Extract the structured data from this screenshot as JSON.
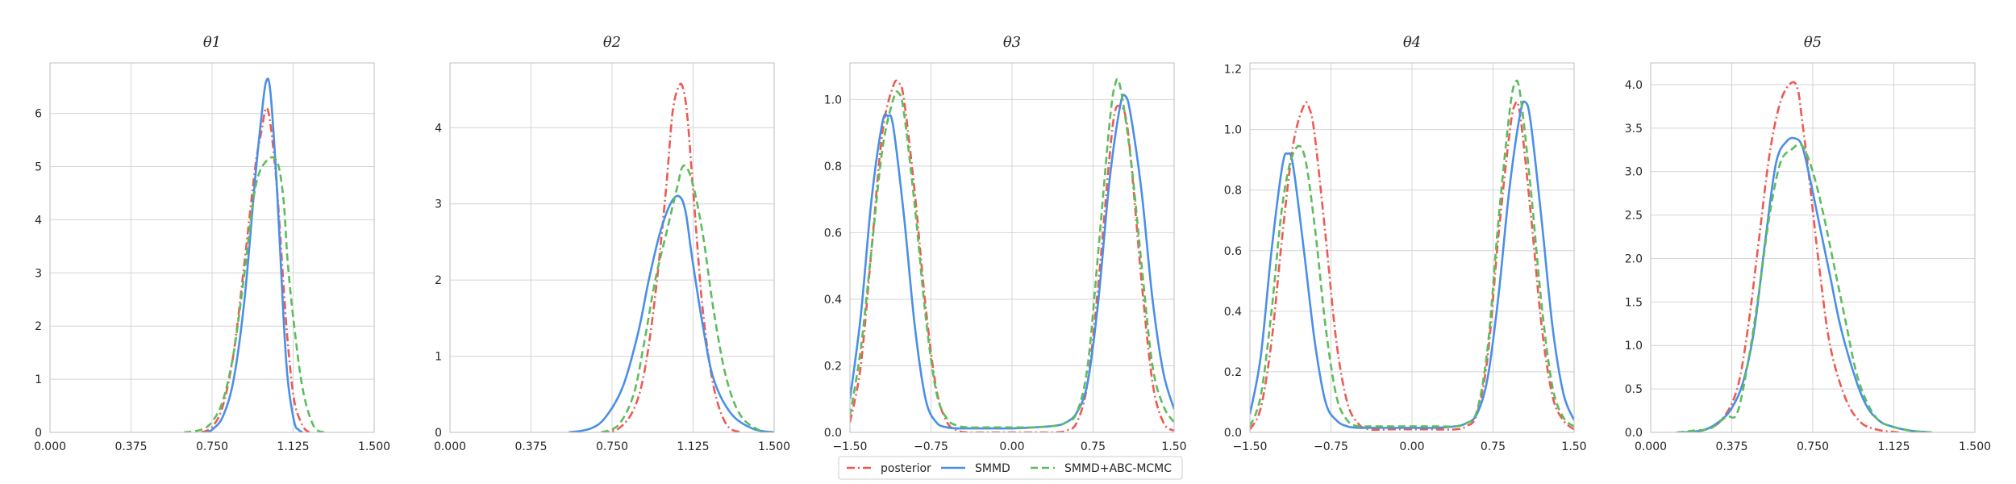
{
  "chart_data": [
    {
      "type": "line",
      "title": "θ1",
      "xlim": [
        0.0,
        1.5
      ],
      "ylim": [
        0,
        6.95
      ],
      "xticks": [
        "0.000",
        "0.375",
        "0.750",
        "1.125",
        "1.500"
      ],
      "yticks": [
        "0",
        "1",
        "2",
        "3",
        "4",
        "5",
        "6"
      ],
      "grid": true,
      "series": [
        {
          "name": "posterior",
          "x": [
            0.7,
            0.75,
            0.8,
            0.85,
            0.9,
            0.95,
            0.98,
            1.0,
            1.02,
            1.05,
            1.08,
            1.1,
            1.13,
            1.17,
            1.2
          ],
          "y": [
            0.0,
            0.1,
            0.5,
            1.5,
            3.2,
            5.0,
            5.7,
            6.1,
            5.8,
            4.6,
            2.8,
            1.7,
            0.6,
            0.12,
            0.0
          ]
        },
        {
          "name": "SMMD",
          "x": [
            0.72,
            0.75,
            0.8,
            0.85,
            0.9,
            0.95,
            0.98,
            1.0,
            1.02,
            1.05,
            1.08,
            1.1,
            1.13,
            1.15,
            1.17
          ],
          "y": [
            0.0,
            0.05,
            0.3,
            1.0,
            2.5,
            4.8,
            6.0,
            6.6,
            6.4,
            4.6,
            2.2,
            1.0,
            0.2,
            0.05,
            0.0
          ]
        },
        {
          "name": "SMMD+ABC-MCMC",
          "x": [
            0.62,
            0.7,
            0.75,
            0.8,
            0.85,
            0.9,
            0.95,
            1.0,
            1.05,
            1.08,
            1.1,
            1.13,
            1.17,
            1.22,
            1.27
          ],
          "y": [
            0.0,
            0.05,
            0.2,
            0.6,
            1.5,
            3.0,
            4.6,
            5.1,
            5.1,
            4.4,
            3.2,
            2.0,
            0.8,
            0.12,
            0.0
          ]
        }
      ]
    },
    {
      "type": "line",
      "title": "θ2",
      "xlim": [
        0.0,
        1.5
      ],
      "ylim": [
        0,
        4.85
      ],
      "xticks": [
        "0.000",
        "0.375",
        "0.750",
        "1.125",
        "1.500"
      ],
      "yticks": [
        "0",
        "1",
        "2",
        "3",
        "4"
      ],
      "grid": true,
      "series": [
        {
          "name": "posterior",
          "x": [
            0.7,
            0.78,
            0.85,
            0.9,
            0.95,
            1.0,
            1.03,
            1.06,
            1.08,
            1.1,
            1.13,
            1.17,
            1.22,
            1.28,
            1.35
          ],
          "y": [
            0.0,
            0.05,
            0.3,
            0.8,
            1.8,
            3.2,
            4.2,
            4.55,
            4.5,
            4.1,
            3.0,
            1.6,
            0.6,
            0.1,
            0.0
          ]
        },
        {
          "name": "SMMD",
          "x": [
            0.55,
            0.65,
            0.72,
            0.8,
            0.87,
            0.92,
            0.97,
            1.02,
            1.06,
            1.09,
            1.12,
            1.17,
            1.22,
            1.3,
            1.4,
            1.5
          ],
          "y": [
            0.0,
            0.05,
            0.2,
            0.6,
            1.3,
            2.0,
            2.6,
            3.0,
            3.1,
            2.9,
            2.3,
            1.4,
            0.7,
            0.25,
            0.05,
            0.0
          ]
        },
        {
          "name": "SMMD+ABC-MCMC",
          "x": [
            0.7,
            0.78,
            0.85,
            0.9,
            0.95,
            1.0,
            1.05,
            1.08,
            1.12,
            1.17,
            1.22,
            1.28,
            1.35,
            1.45
          ],
          "y": [
            0.0,
            0.1,
            0.5,
            1.2,
            2.0,
            2.6,
            3.2,
            3.5,
            3.3,
            2.6,
            1.6,
            0.7,
            0.2,
            0.0
          ]
        }
      ]
    },
    {
      "type": "line",
      "title": "θ3",
      "xlim": [
        -1.5,
        1.5
      ],
      "ylim": [
        0,
        1.11
      ],
      "xticks": [
        "−1.50",
        "−0.75",
        "0.00",
        "0.75",
        "1.50"
      ],
      "yticks": [
        "0.0",
        "0.2",
        "0.4",
        "0.6",
        "0.8",
        "1.0"
      ],
      "grid": true,
      "series": [
        {
          "name": "posterior",
          "x": [
            -1.5,
            -1.4,
            -1.3,
            -1.2,
            -1.1,
            -1.05,
            -1.0,
            -0.9,
            -0.8,
            -0.7,
            -0.6,
            -0.5,
            -0.4,
            -0.2,
            0.0,
            0.2,
            0.4,
            0.5,
            0.6,
            0.7,
            0.8,
            0.9,
            0.95,
            1.0,
            1.05,
            1.1,
            1.2,
            1.3,
            1.4,
            1.5
          ],
          "y": [
            0.03,
            0.2,
            0.55,
            0.9,
            1.04,
            1.05,
            1.0,
            0.72,
            0.38,
            0.13,
            0.03,
            0.005,
            0.0,
            0.0,
            0.0,
            0.0,
            0.0,
            0.005,
            0.03,
            0.15,
            0.45,
            0.82,
            0.96,
            0.98,
            0.95,
            0.82,
            0.45,
            0.15,
            0.03,
            0.005
          ]
        },
        {
          "name": "SMMD",
          "x": [
            -1.5,
            -1.4,
            -1.3,
            -1.2,
            -1.15,
            -1.1,
            -1.0,
            -0.9,
            -0.8,
            -0.7,
            -0.6,
            -0.5,
            -0.4,
            -0.2,
            0.0,
            0.2,
            0.4,
            0.5,
            0.6,
            0.7,
            0.8,
            0.9,
            1.0,
            1.05,
            1.1,
            1.2,
            1.3,
            1.4,
            1.5
          ],
          "y": [
            0.1,
            0.35,
            0.7,
            0.93,
            0.95,
            0.92,
            0.65,
            0.32,
            0.1,
            0.03,
            0.015,
            0.012,
            0.012,
            0.012,
            0.012,
            0.015,
            0.02,
            0.03,
            0.06,
            0.15,
            0.4,
            0.75,
            0.98,
            1.01,
            0.95,
            0.72,
            0.4,
            0.18,
            0.07
          ]
        },
        {
          "name": "SMMD+ABC-MCMC",
          "x": [
            -1.5,
            -1.4,
            -1.3,
            -1.2,
            -1.1,
            -1.05,
            -1.0,
            -0.9,
            -0.8,
            -0.7,
            -0.6,
            -0.5,
            -0.4,
            -0.2,
            0.0,
            0.2,
            0.4,
            0.5,
            0.6,
            0.7,
            0.8,
            0.9,
            0.95,
            1.0,
            1.1,
            1.2,
            1.3,
            1.4,
            1.5
          ],
          "y": [
            0.05,
            0.25,
            0.55,
            0.85,
            1.0,
            1.02,
            0.96,
            0.68,
            0.35,
            0.12,
            0.04,
            0.02,
            0.015,
            0.015,
            0.015,
            0.015,
            0.02,
            0.03,
            0.06,
            0.2,
            0.55,
            0.92,
            1.04,
            1.04,
            0.82,
            0.5,
            0.2,
            0.08,
            0.03
          ]
        }
      ]
    },
    {
      "type": "line",
      "title": "θ4",
      "xlim": [
        -1.5,
        1.5
      ],
      "ylim": [
        0,
        1.22
      ],
      "xticks": [
        "−1.50",
        "−0.75",
        "0.00",
        "0.75",
        "1.50"
      ],
      "yticks": [
        "0.0",
        "0.2",
        "0.4",
        "0.6",
        "0.8",
        "1.0",
        "1.2"
      ],
      "grid": true,
      "series": [
        {
          "name": "posterior",
          "x": [
            -1.5,
            -1.4,
            -1.3,
            -1.2,
            -1.1,
            -1.0,
            -0.95,
            -0.9,
            -0.8,
            -0.7,
            -0.6,
            -0.5,
            -0.4,
            -0.2,
            0.0,
            0.2,
            0.4,
            0.5,
            0.6,
            0.7,
            0.8,
            0.9,
            0.95,
            1.0,
            1.1,
            1.2,
            1.3,
            1.4,
            1.5
          ],
          "y": [
            0.01,
            0.08,
            0.3,
            0.65,
            0.95,
            1.08,
            1.07,
            0.98,
            0.65,
            0.3,
            0.1,
            0.03,
            0.01,
            0.01,
            0.01,
            0.01,
            0.01,
            0.02,
            0.06,
            0.25,
            0.65,
            0.98,
            1.08,
            1.05,
            0.72,
            0.35,
            0.12,
            0.04,
            0.01
          ]
        },
        {
          "name": "SMMD",
          "x": [
            -1.5,
            -1.4,
            -1.3,
            -1.2,
            -1.15,
            -1.1,
            -1.0,
            -0.9,
            -0.8,
            -0.7,
            -0.6,
            -0.5,
            -0.4,
            -0.2,
            0.0,
            0.2,
            0.4,
            0.5,
            0.6,
            0.7,
            0.8,
            0.9,
            1.0,
            1.05,
            1.1,
            1.2,
            1.3,
            1.4,
            1.5
          ],
          "y": [
            0.06,
            0.25,
            0.6,
            0.88,
            0.92,
            0.88,
            0.6,
            0.3,
            0.1,
            0.04,
            0.02,
            0.015,
            0.015,
            0.015,
            0.015,
            0.015,
            0.02,
            0.03,
            0.06,
            0.18,
            0.45,
            0.8,
            1.05,
            1.09,
            1.02,
            0.7,
            0.35,
            0.13,
            0.04
          ]
        },
        {
          "name": "SMMD+ABC-MCMC",
          "x": [
            -1.5,
            -1.4,
            -1.3,
            -1.2,
            -1.1,
            -1.0,
            -0.9,
            -0.8,
            -0.7,
            -0.6,
            -0.5,
            -0.4,
            -0.2,
            0.0,
            0.2,
            0.4,
            0.5,
            0.6,
            0.7,
            0.8,
            0.9,
            0.95,
            1.0,
            1.1,
            1.2,
            1.3,
            1.4,
            1.5
          ],
          "y": [
            0.02,
            0.12,
            0.4,
            0.75,
            0.92,
            0.92,
            0.68,
            0.35,
            0.12,
            0.04,
            0.02,
            0.02,
            0.02,
            0.02,
            0.02,
            0.02,
            0.03,
            0.07,
            0.28,
            0.7,
            1.05,
            1.15,
            1.12,
            0.8,
            0.42,
            0.15,
            0.05,
            0.02
          ]
        }
      ]
    },
    {
      "type": "line",
      "title": "θ5",
      "xlim": [
        0.0,
        1.5
      ],
      "ylim": [
        0,
        4.25
      ],
      "xticks": [
        "0.000",
        "0.375",
        "0.750",
        "1.125",
        "1.500"
      ],
      "yticks": [
        "0.0",
        "0.5",
        "1.0",
        "1.5",
        "2.0",
        "2.5",
        "3.0",
        "3.5",
        "4.0"
      ],
      "grid": true,
      "series": [
        {
          "name": "posterior",
          "x": [
            0.15,
            0.25,
            0.33,
            0.4,
            0.45,
            0.5,
            0.55,
            0.6,
            0.65,
            0.68,
            0.7,
            0.73,
            0.78,
            0.83,
            0.9,
            0.97,
            1.05,
            1.15
          ],
          "y": [
            0.0,
            0.03,
            0.15,
            0.5,
            1.2,
            2.2,
            3.2,
            3.8,
            4.02,
            3.95,
            3.6,
            3.0,
            1.9,
            1.0,
            0.4,
            0.12,
            0.03,
            0.0
          ]
        },
        {
          "name": "SMMD",
          "x": [
            0.15,
            0.25,
            0.33,
            0.38,
            0.43,
            0.48,
            0.53,
            0.58,
            0.63,
            0.67,
            0.7,
            0.73,
            0.78,
            0.83,
            0.88,
            0.95,
            1.0,
            1.05,
            1.1,
            1.2,
            1.3
          ],
          "y": [
            0.0,
            0.03,
            0.15,
            0.3,
            0.6,
            1.2,
            2.2,
            3.1,
            3.35,
            3.38,
            3.3,
            3.0,
            2.4,
            1.8,
            1.2,
            0.6,
            0.3,
            0.15,
            0.08,
            0.02,
            0.0
          ]
        },
        {
          "name": "SMMD+ABC-MCMC",
          "x": [
            0.12,
            0.2,
            0.28,
            0.35,
            0.4,
            0.45,
            0.5,
            0.55,
            0.6,
            0.65,
            0.7,
            0.75,
            0.8,
            0.85,
            0.9,
            0.95,
            1.0,
            1.05,
            1.1,
            1.2,
            1.3
          ],
          "y": [
            0.0,
            0.02,
            0.05,
            0.18,
            0.22,
            0.8,
            1.6,
            2.5,
            3.1,
            3.25,
            3.3,
            3.0,
            2.5,
            1.9,
            1.3,
            0.7,
            0.35,
            0.15,
            0.08,
            0.02,
            0.0
          ]
        }
      ]
    }
  ],
  "legend": {
    "placement": "bottom-center",
    "items": [
      {
        "label": "posterior",
        "color": "#ee5a52",
        "dash": "dashdot"
      },
      {
        "label": "SMMD",
        "color": "#4a8fe7",
        "dash": "solid"
      },
      {
        "label": "SMMD+ABC-MCMC",
        "color": "#5cbd5c",
        "dash": "dashed"
      }
    ]
  },
  "colors": {
    "posterior": "#ee5a52",
    "SMMD": "#4a8fe7",
    "SMMD+ABC-MCMC": "#5cbd5c",
    "grid": "#d4d4d4",
    "spine": "#bfbfbf"
  }
}
